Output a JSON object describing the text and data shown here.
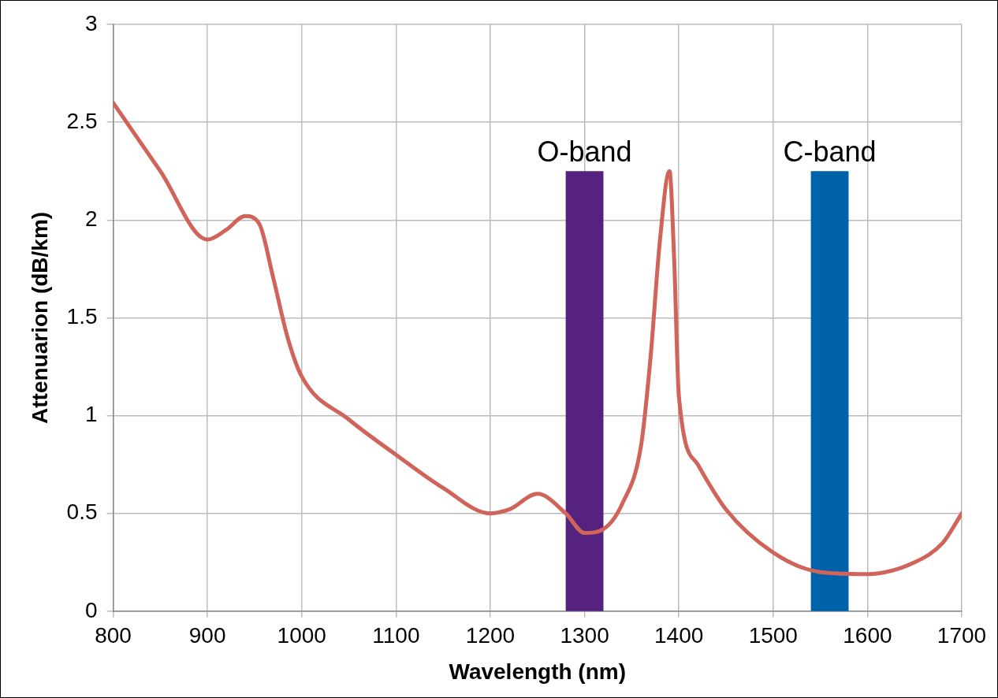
{
  "chart_data": {
    "type": "line",
    "xlabel": "Wavelength (nm)",
    "ylabel": "Attenuarion (dB/km)",
    "series": [
      {
        "color": "#d0645a",
        "x": [
          800,
          850,
          900,
          920,
          940,
          955,
          970,
          985,
          1000,
          1050,
          1100,
          1150,
          1200,
          1220,
          1250,
          1280,
          1300,
          1320,
          1340,
          1360,
          1370,
          1380,
          1390,
          1395,
          1400,
          1420,
          1450,
          1500,
          1550,
          1600,
          1650,
          1680,
          1700
        ],
        "values": [
          2.6,
          2.25,
          1.9,
          1.95,
          2.02,
          1.98,
          1.7,
          1.4,
          1.2,
          0.98,
          0.8,
          0.63,
          0.5,
          0.52,
          0.6,
          0.5,
          0.4,
          0.42,
          0.55,
          0.85,
          1.3,
          1.9,
          2.25,
          1.8,
          1.1,
          0.75,
          0.52,
          0.3,
          0.2,
          0.19,
          0.25,
          0.35,
          0.5
        ]
      }
    ],
    "xlim": [
      800,
      1700
    ],
    "xticks": [
      800,
      900,
      1000,
      1100,
      1200,
      1300,
      1400,
      1500,
      1600,
      1700
    ],
    "ylim": [
      0,
      3
    ],
    "yticks": [
      0,
      0.5,
      1,
      1.5,
      2,
      2.5,
      3
    ],
    "bands": [
      {
        "axis": "x",
        "from": 1280,
        "to": 1320,
        "label": "O-band",
        "color": "#55237f"
      },
      {
        "axis": "x",
        "from": 1540,
        "to": 1580,
        "label": "C-band",
        "color": "#0062a8"
      }
    ],
    "grid": true,
    "legend": false,
    "marker": "none",
    "line_style": "solid"
  }
}
